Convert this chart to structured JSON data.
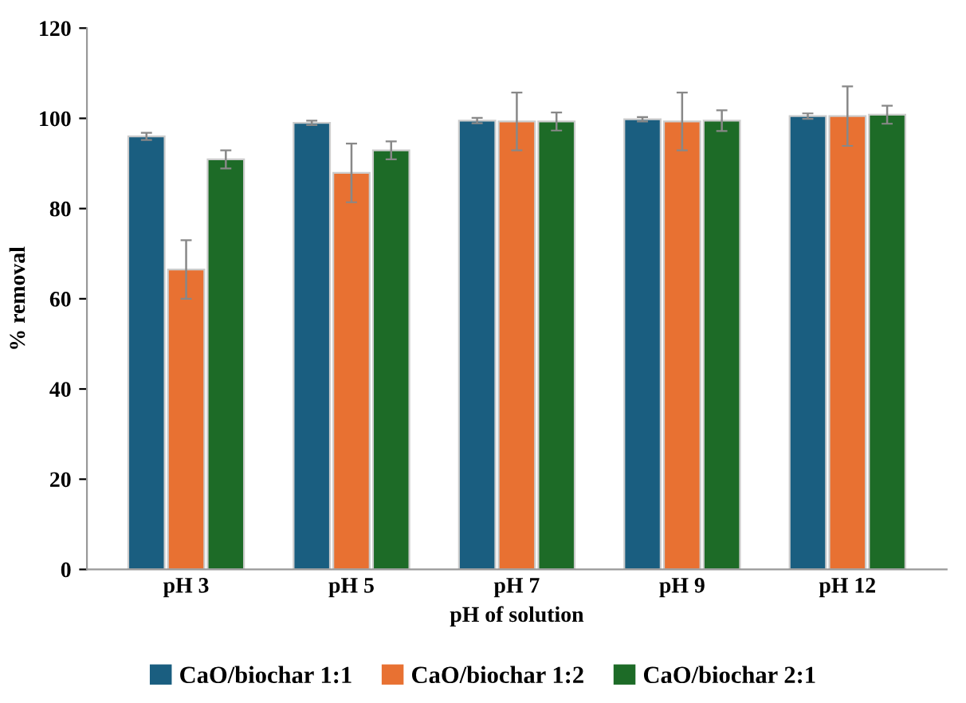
{
  "chart_data": {
    "type": "bar",
    "xlabel": "pH of solution",
    "ylabel": "% removal",
    "categories": [
      "pH 3",
      "pH 5",
      "pH 7",
      "pH 9",
      "pH 12"
    ],
    "ylim": [
      0,
      120
    ],
    "yticks": [
      0,
      20,
      40,
      60,
      80,
      100,
      120
    ],
    "grid": false,
    "legend": "bottom",
    "series": [
      {
        "name": "CaO/biochar 1:1",
        "color": "#1a5e80",
        "values": [
          96.0,
          99.0,
          99.5,
          99.8,
          100.5
        ],
        "errors": [
          0.8,
          0.5,
          0.6,
          0.5,
          0.6
        ]
      },
      {
        "name": "CaO/biochar 1:2",
        "color": "#e87132",
        "values": [
          66.5,
          87.9,
          99.3,
          99.3,
          100.5
        ],
        "errors": [
          6.5,
          6.5,
          6.4,
          6.4,
          6.6
        ]
      },
      {
        "name": "CaO/biochar 2:1",
        "color": "#1d6b27",
        "values": [
          90.9,
          92.9,
          99.3,
          99.5,
          100.8
        ],
        "errors": [
          2.0,
          2.0,
          2.0,
          2.3,
          2.0
        ]
      }
    ]
  }
}
